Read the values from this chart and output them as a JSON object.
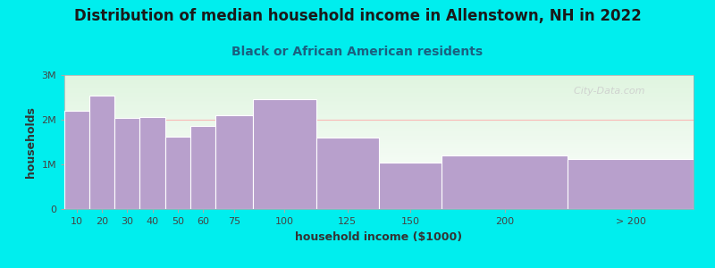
{
  "title": "Distribution of median household income in Allenstown, NH in 2022",
  "subtitle": "Black or African American residents",
  "xlabel": "household income ($1000)",
  "ylabel": "households",
  "background_color": "#00EEEE",
  "plot_bg_top_color": "#e0f5e0",
  "plot_bg_bottom_color": "#ffffff",
  "bar_color": "#b8a0cc",
  "bar_edge_color": "#ffffff",
  "categories": [
    "10",
    "20",
    "30",
    "40",
    "50",
    "60",
    "75",
    "100",
    "125",
    "150",
    "200",
    "> 200"
  ],
  "values": [
    2200000,
    2550000,
    2050000,
    2070000,
    1630000,
    1870000,
    2100000,
    2460000,
    1600000,
    1050000,
    1200000,
    1130000
  ],
  "bar_lefts": [
    0,
    10,
    20,
    30,
    40,
    50,
    60,
    75,
    100,
    125,
    150,
    200
  ],
  "bar_widths": [
    10,
    10,
    10,
    10,
    10,
    10,
    15,
    25,
    25,
    25,
    50,
    50
  ],
  "ylim": [
    0,
    3000000
  ],
  "yticks": [
    0,
    1000000,
    2000000,
    3000000
  ],
  "ytick_labels": [
    "0",
    "1M",
    "2M",
    "3M"
  ],
  "title_fontsize": 12,
  "subtitle_fontsize": 10,
  "axis_label_fontsize": 9,
  "tick_fontsize": 8,
  "title_color": "#1a1a1a",
  "subtitle_color": "#1a6080",
  "axis_label_color": "#333333",
  "tick_color": "#444444",
  "watermark": "  City-Data.com",
  "watermark_color": "#cccccc",
  "hline_y": 2000000,
  "hline_color": "#ffaaaa"
}
